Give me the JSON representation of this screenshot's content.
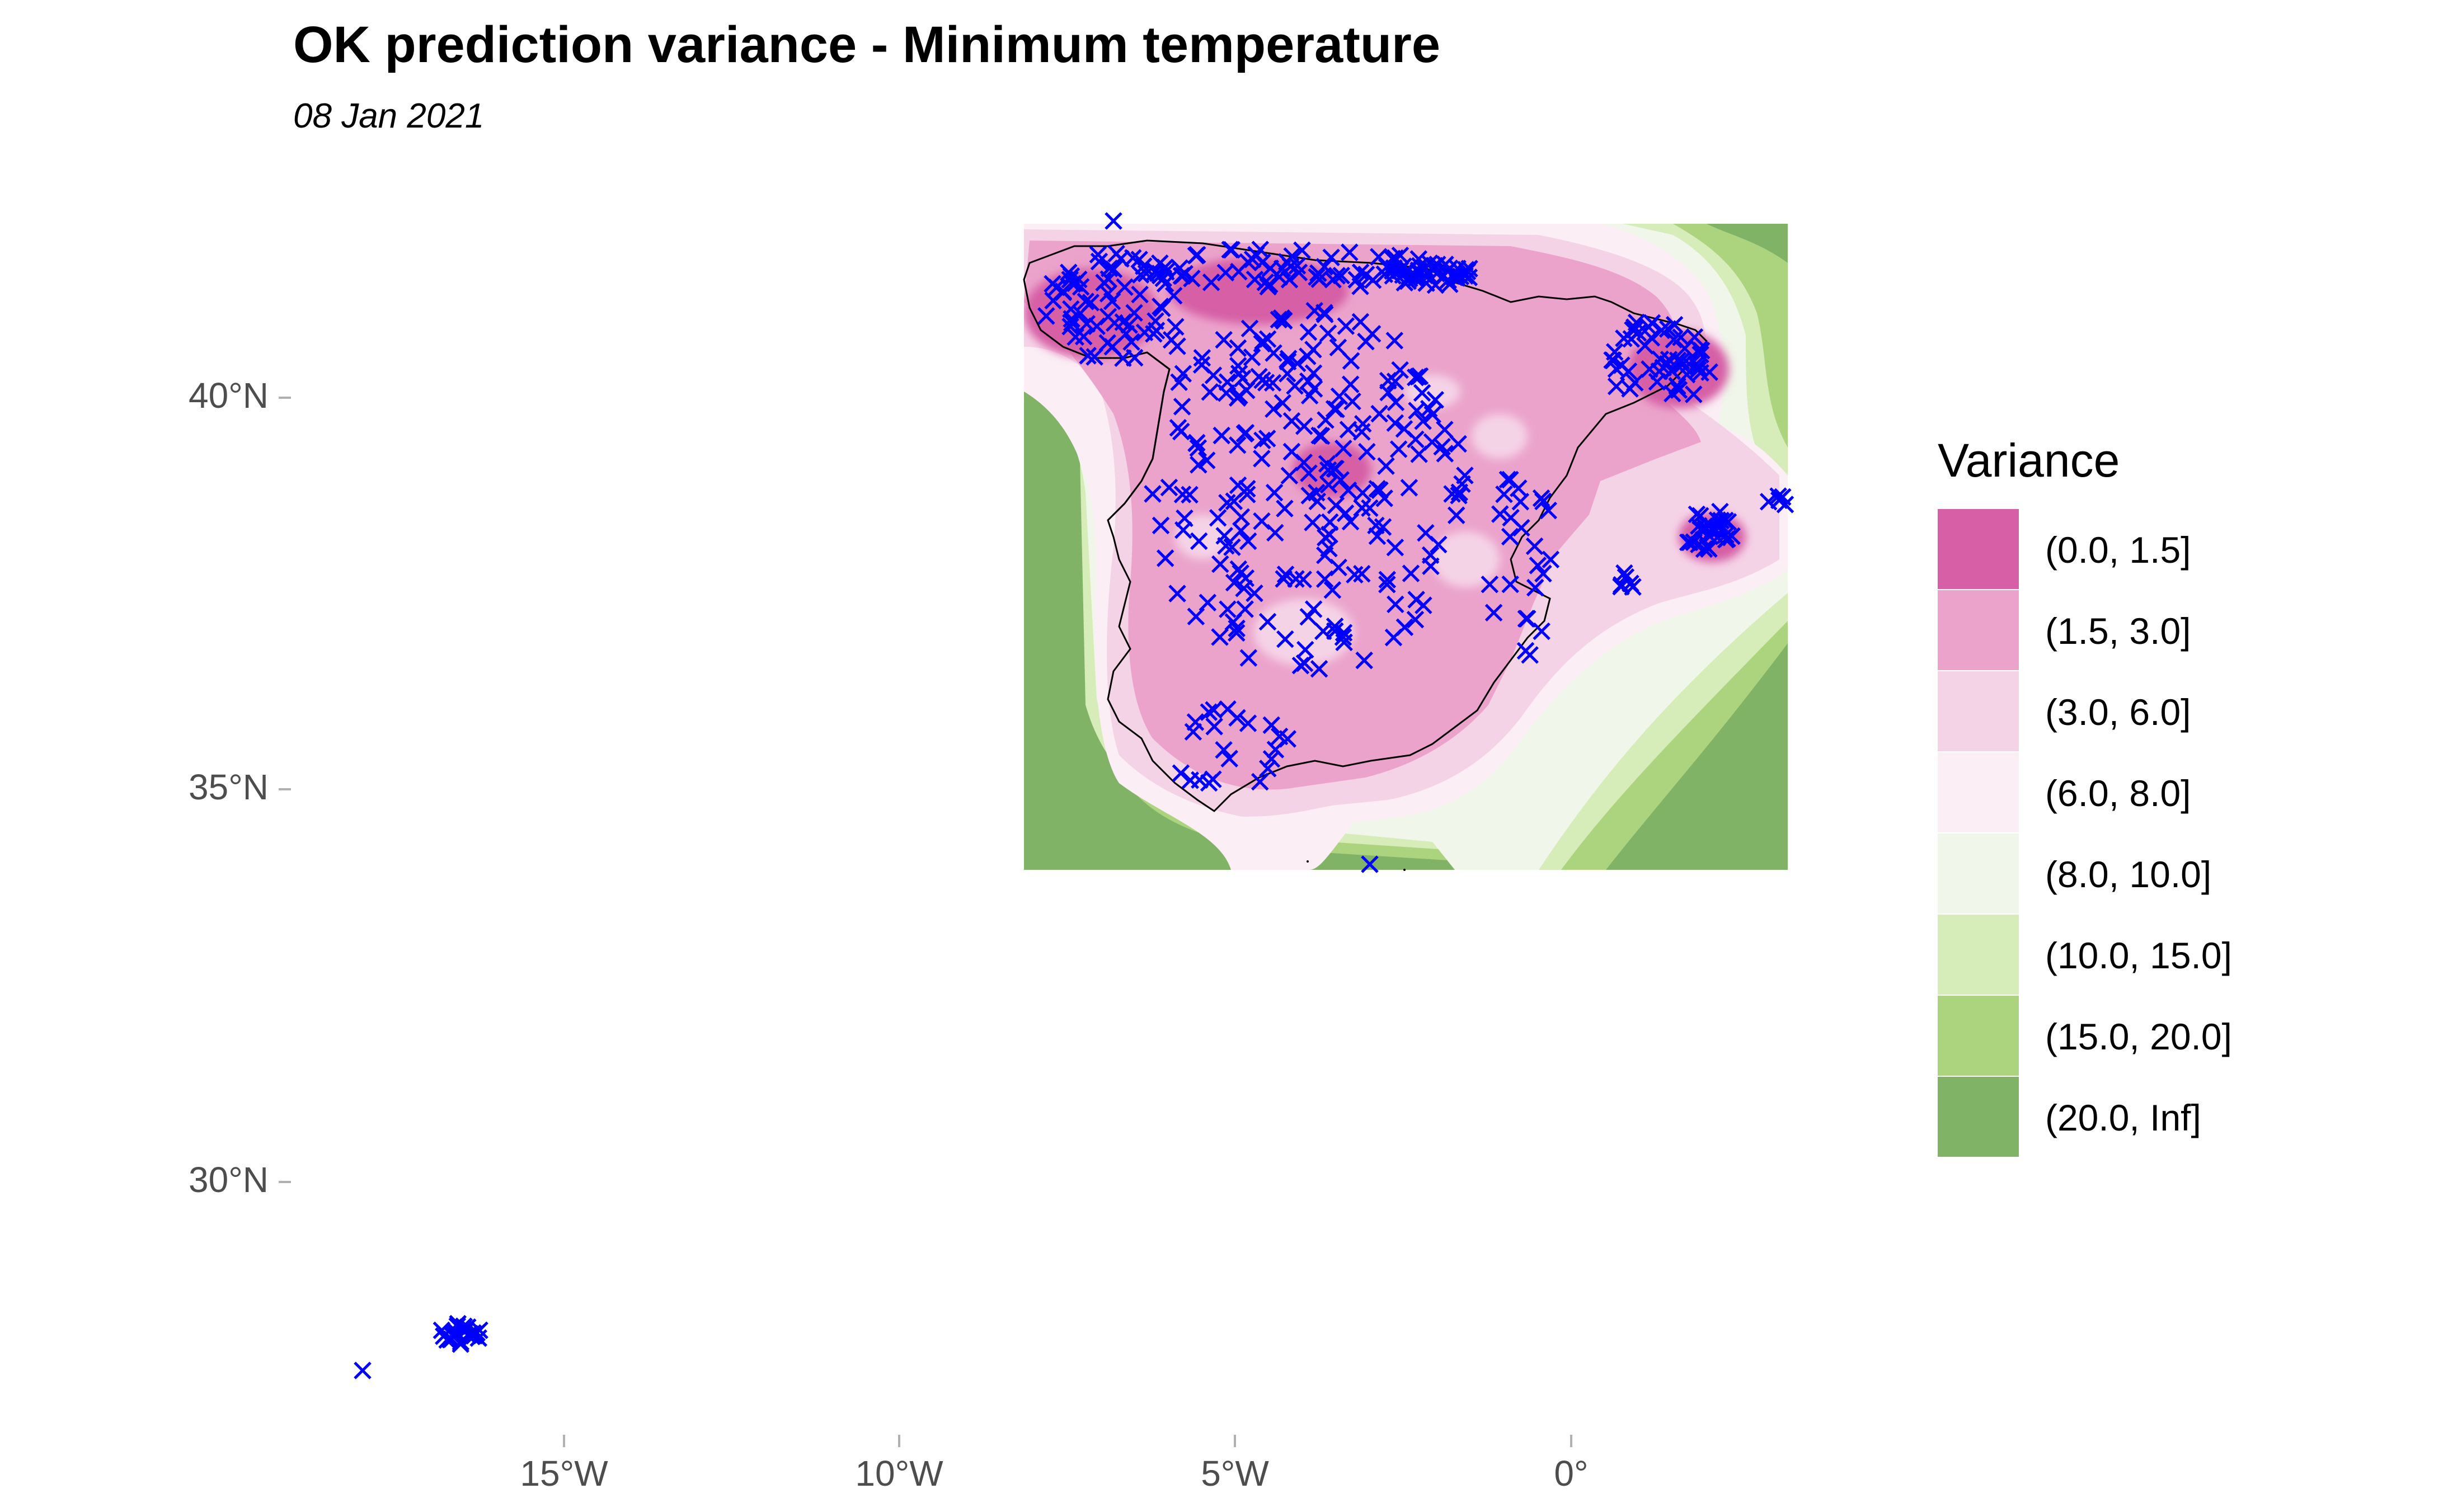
{
  "title": "OK prediction variance - Minimum temperature",
  "subtitle": "08 Jan 2021",
  "axes": {
    "y_ticks": [
      "40°N",
      "35°N",
      "30°N"
    ],
    "x_ticks": [
      "15°W",
      "10°W",
      "5°W",
      "0°"
    ]
  },
  "legend": {
    "title": "Variance",
    "items": [
      {
        "label": "(0.0, 1.5]",
        "color": "#d65fa6"
      },
      {
        "label": "(1.5, 3.0]",
        "color": "#eba3cb"
      },
      {
        "label": "(3.0, 6.0]",
        "color": "#f5d3e7"
      },
      {
        "label": "(6.0, 8.0]",
        "color": "#fbeef5"
      },
      {
        "label": "(8.0, 10.0]",
        "color": "#f0f6ea"
      },
      {
        "label": "(10.0, 15.0]",
        "color": "#d6ecb9"
      },
      {
        "label": "(15.0, 20.0]",
        "color": "#acd37e"
      },
      {
        "label": "(20.0, Inf]",
        "color": "#80b366"
      }
    ]
  },
  "colors": {
    "station_marker": "#0000ff",
    "coastline": "#000000"
  }
}
